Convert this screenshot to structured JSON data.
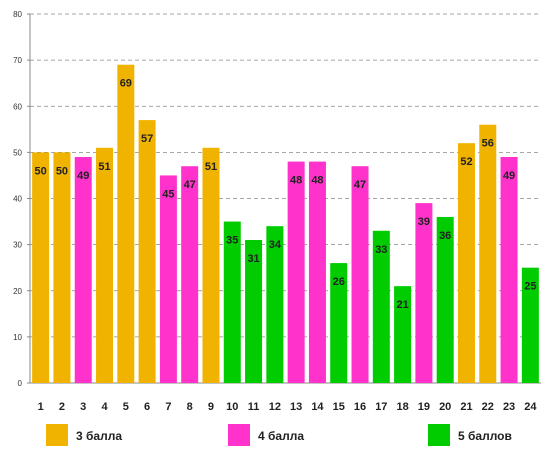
{
  "chart_data": {
    "type": "bar",
    "categories": [
      "1",
      "2",
      "3",
      "4",
      "5",
      "6",
      "7",
      "8",
      "9",
      "10",
      "11",
      "12",
      "13",
      "14",
      "15",
      "16",
      "17",
      "18",
      "19",
      "20",
      "21",
      "22",
      "23",
      "24"
    ],
    "values": [
      50,
      50,
      49,
      51,
      69,
      57,
      45,
      47,
      51,
      35,
      31,
      34,
      48,
      48,
      26,
      47,
      33,
      21,
      39,
      36,
      52,
      56,
      49,
      25
    ],
    "groups": [
      "3",
      "3",
      "4",
      "3",
      "3",
      "3",
      "4",
      "4",
      "3",
      "5",
      "5",
      "5",
      "4",
      "4",
      "5",
      "4",
      "5",
      "5",
      "4",
      "5",
      "3",
      "3",
      "4",
      "5"
    ],
    "ylim": [
      0,
      80
    ],
    "yticks": [
      0,
      10,
      20,
      30,
      40,
      50,
      60,
      70,
      80
    ],
    "grid": true,
    "legend_position": "bottom",
    "colors": {
      "3": "#f0b400",
      "4": "#ff33cc",
      "5": "#00cc00"
    }
  },
  "legend": [
    {
      "key": "3",
      "label": "3 балла",
      "color": "#f0b400"
    },
    {
      "key": "4",
      "label": "4 балла",
      "color": "#ff33cc"
    },
    {
      "key": "5",
      "label": "5 баллов",
      "color": "#00cc00"
    }
  ]
}
